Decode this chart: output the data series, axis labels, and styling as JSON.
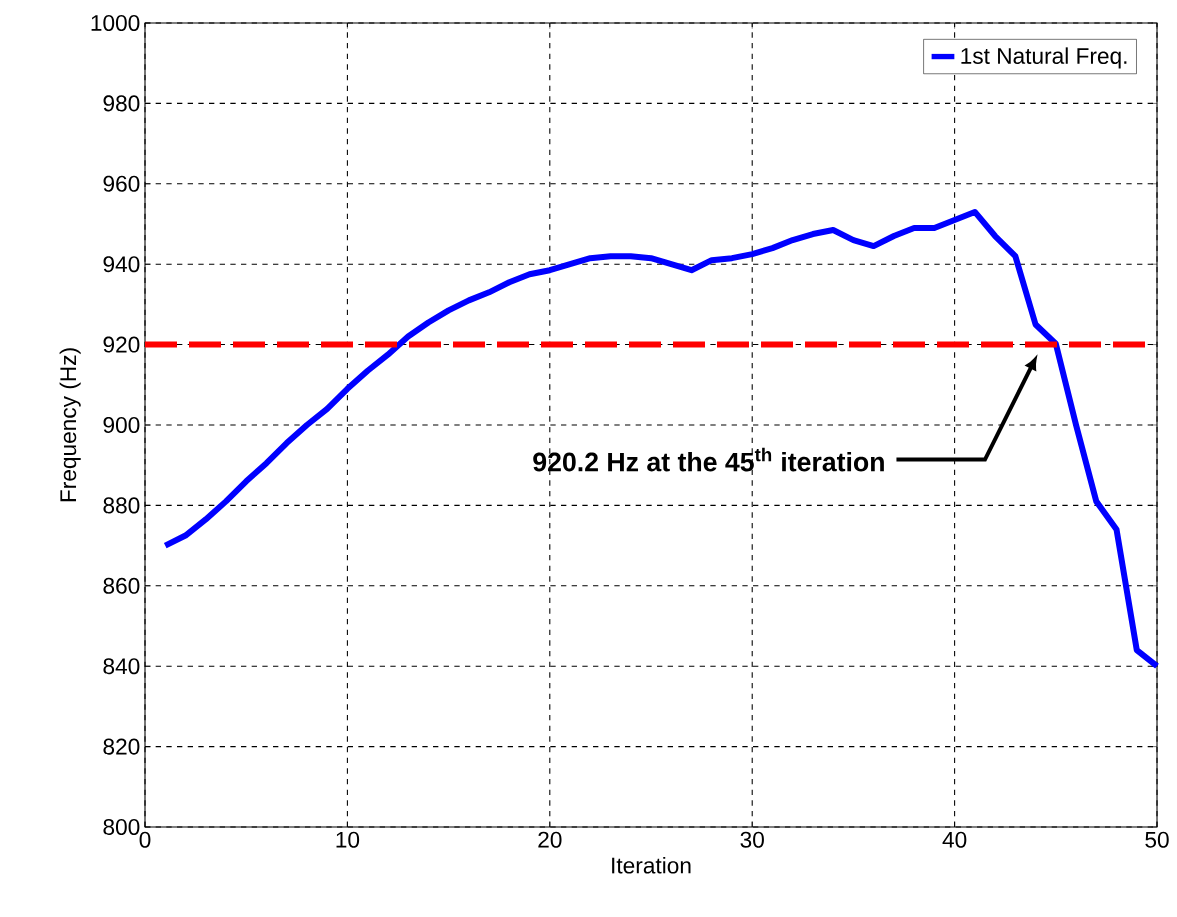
{
  "chart_data": {
    "type": "line",
    "xlabel": "Iteration",
    "ylabel": "Frequency (Hz)",
    "x": [
      1,
      2,
      3,
      4,
      5,
      6,
      7,
      8,
      9,
      10,
      11,
      12,
      13,
      14,
      15,
      16,
      17,
      18,
      19,
      20,
      21,
      22,
      23,
      24,
      25,
      26,
      27,
      28,
      29,
      30,
      31,
      32,
      33,
      34,
      35,
      36,
      37,
      38,
      39,
      40,
      41,
      42,
      43,
      44,
      45,
      46,
      47,
      48,
      49,
      50
    ],
    "series": [
      {
        "name": "1st Natural Freq.",
        "color": "#0000ff",
        "values": [
          870,
          872.5,
          876.5,
          881,
          886,
          890.5,
          895.5,
          900,
          904,
          909,
          913.5,
          917.5,
          922,
          925.5,
          928.5,
          931,
          933,
          935.5,
          937.5,
          938.5,
          940,
          941.5,
          942,
          942,
          941.5,
          940,
          938.5,
          941,
          941.5,
          942.5,
          944,
          946,
          947.5,
          948.5,
          946,
          944.5,
          947,
          949,
          949,
          951,
          953,
          947,
          942,
          925,
          920.2,
          900,
          881,
          874,
          844,
          840
        ]
      }
    ],
    "xlim": [
      0,
      50
    ],
    "ylim": [
      800,
      1000
    ],
    "xticks": [
      0,
      10,
      20,
      30,
      40,
      50
    ],
    "yticks": [
      800,
      820,
      840,
      860,
      880,
      900,
      920,
      940,
      960,
      980,
      1000
    ],
    "ref_lines": [
      {
        "axis": "y",
        "value": 920,
        "color": "#ff0000",
        "line_style": "dashed"
      }
    ],
    "annotations": [
      "920.2 Hz at the 45$^{th}$ iteration"
    ],
    "grid": true,
    "legend": "top right",
    "marker": "none",
    "line_style": "solid"
  }
}
